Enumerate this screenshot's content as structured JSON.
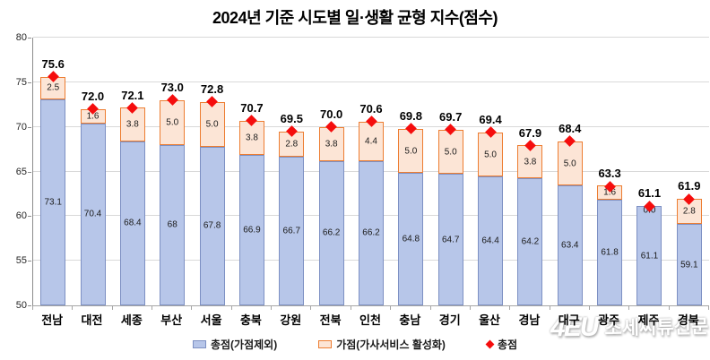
{
  "title": "2024년 기준 시도별 일·생활 균형 지수(점수)",
  "chart_data": {
    "type": "bar",
    "stacked": true,
    "title": "2024년 기준 시도별 일·생활 균형 지수(점수)",
    "categories": [
      "전남",
      "대전",
      "세종",
      "부산",
      "서울",
      "충북",
      "강원",
      "전북",
      "인천",
      "충남",
      "경기",
      "울산",
      "경남",
      "대구",
      "광주",
      "제주",
      "경북"
    ],
    "series": [
      {
        "name": "총점(가점제외)",
        "role": "base",
        "values": [
          73.1,
          70.4,
          68.4,
          68,
          67.8,
          66.9,
          66.7,
          66.2,
          66.2,
          64.8,
          64.7,
          64.4,
          64.2,
          63.4,
          61.8,
          61.1,
          59.1
        ],
        "labels": [
          "73.1",
          "70.4",
          "68.4",
          "68",
          "67.8",
          "66.9",
          "66.7",
          "66.2",
          "66.2",
          "64.8",
          "64.7",
          "64.4",
          "64.2",
          "63.4",
          "61.8",
          "61.1",
          "59.1"
        ]
      },
      {
        "name": "가점(가사서비스 활성화)",
        "role": "bonus",
        "values": [
          2.5,
          1.6,
          3.8,
          5.0,
          5.0,
          3.8,
          2.8,
          3.8,
          4.4,
          5.0,
          5.0,
          5.0,
          3.8,
          5.0,
          1.6,
          0.0,
          2.8
        ],
        "labels": [
          "2.5",
          "1.6",
          "3.8",
          "5.0",
          "5.0",
          "3.8",
          "2.8",
          "3.8",
          "4.4",
          "5.0",
          "5.0",
          "5.0",
          "3.8",
          "5.0",
          "1.6",
          "0.0",
          "2.8"
        ]
      },
      {
        "name": "총점",
        "role": "total-marker",
        "marker": "diamond",
        "values": [
          75.6,
          72.0,
          72.1,
          73.0,
          72.8,
          70.7,
          69.5,
          70.0,
          70.6,
          69.8,
          69.7,
          69.4,
          67.9,
          68.4,
          63.3,
          61.1,
          61.9
        ],
        "labels": [
          "75.6",
          "72.0",
          "72.1",
          "73.0",
          "72.8",
          "70.7",
          "69.5",
          "70.0",
          "70.6",
          "69.8",
          "69.7",
          "69.4",
          "67.9",
          "68.4",
          "63.3",
          "61.1",
          "61.9"
        ]
      }
    ],
    "ylim": [
      50,
      80
    ],
    "yticks": [
      50,
      55,
      60,
      65,
      70,
      75,
      80
    ],
    "grid": true,
    "legend_position": "bottom",
    "colors": {
      "base_fill": "#b7c6e9",
      "base_border": "#7d90c3",
      "bonus_fill": "#fce5d6",
      "bonus_border": "#ed7d31",
      "marker": "#f50d0d",
      "gridline": "#d9d9d9"
    }
  },
  "legend": {
    "items": [
      {
        "label": "총점(가점제외)",
        "swatch": "blue-rect"
      },
      {
        "label": "가점(가사서비스 활성화)",
        "swatch": "orange-rect"
      },
      {
        "label": "총점",
        "swatch": "red-diamond"
      }
    ]
  },
  "watermark": {
    "logo": "4EU",
    "text": "조세씨튜신문"
  }
}
